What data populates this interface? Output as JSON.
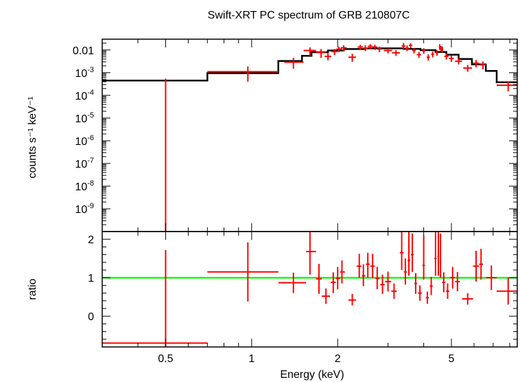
{
  "chart_data": [
    {
      "type": "scatter",
      "panel": "spectrum",
      "title": "Swift-XRT PC spectrum of GRB 210807C",
      "xlabel": "Energy (keV)",
      "ylabel": "counts s⁻¹ keV⁻¹",
      "xscale": "log",
      "yscale": "log",
      "xlim": [
        0.3,
        8.5
      ],
      "ylim": [
        1e-10,
        0.03
      ],
      "ytick_labels": [
        {
          "value": 0.01,
          "label": "0.01"
        },
        {
          "value": 0.001,
          "label": "10",
          "exp": "-3"
        },
        {
          "value": 0.0001,
          "label": "10",
          "exp": "-4"
        },
        {
          "value": 1e-05,
          "label": "10",
          "exp": "-5"
        },
        {
          "value": 1e-06,
          "label": "10",
          "exp": "-6"
        },
        {
          "value": 1e-07,
          "label": "10",
          "exp": "-7"
        },
        {
          "value": 1e-08,
          "label": "10",
          "exp": "-8"
        },
        {
          "value": 1e-09,
          "label": "10",
          "exp": "-9"
        }
      ],
      "data_color": "#ff0000",
      "model_color": "#000000",
      "model_steps": [
        {
          "x0": 0.3,
          "x1": 0.7,
          "y": 0.00045
        },
        {
          "x0": 0.7,
          "x1": 1.24,
          "y": 0.00095
        },
        {
          "x0": 1.24,
          "x1": 1.5,
          "y": 0.0033
        },
        {
          "x0": 1.5,
          "x1": 1.62,
          "y": 0.0055
        },
        {
          "x0": 1.62,
          "x1": 1.85,
          "y": 0.008
        },
        {
          "x0": 1.85,
          "x1": 2.1,
          "y": 0.0095
        },
        {
          "x0": 2.1,
          "x1": 2.5,
          "y": 0.011
        },
        {
          "x0": 2.5,
          "x1": 3.4,
          "y": 0.0118
        },
        {
          "x0": 3.4,
          "x1": 3.9,
          "y": 0.0112
        },
        {
          "x0": 3.9,
          "x1": 4.4,
          "y": 0.0098
        },
        {
          "x0": 4.4,
          "x1": 4.8,
          "y": 0.0082
        },
        {
          "x0": 4.8,
          "x1": 5.3,
          "y": 0.0062
        },
        {
          "x0": 5.3,
          "x1": 5.9,
          "y": 0.004
        },
        {
          "x0": 5.9,
          "x1": 6.6,
          "y": 0.0023
        },
        {
          "x0": 6.6,
          "x1": 7.2,
          "y": 0.0012
        },
        {
          "x0": 7.2,
          "x1": 8.5,
          "y": 0.00038
        }
      ],
      "points": [
        {
          "x": 0.5,
          "xlo": 0.5,
          "xhi": 0.5,
          "y": 0.00045,
          "ylo": 1e-10,
          "yhi": 0.00055
        },
        {
          "x": 0.97,
          "xlo": 0.7,
          "xhi": 1.24,
          "y": 0.0011,
          "ylo": 0.0004,
          "yhi": 0.0019
        },
        {
          "x": 1.4,
          "xlo": 1.3,
          "xhi": 1.52,
          "y": 0.0029,
          "ylo": 0.0015,
          "yhi": 0.0045
        },
        {
          "x": 1.6,
          "xlo": 1.52,
          "xhi": 1.68,
          "y": 0.0095,
          "ylo": 0.0055,
          "yhi": 0.013
        },
        {
          "x": 1.75,
          "xlo": 1.68,
          "xhi": 1.82,
          "y": 0.0078,
          "ylo": 0.0045,
          "yhi": 0.011
        },
        {
          "x": 1.85,
          "xlo": 1.8,
          "xhi": 1.9,
          "y": 0.0052,
          "ylo": 0.0035,
          "yhi": 0.0072
        },
        {
          "x": 1.95,
          "xlo": 1.9,
          "xhi": 2.0,
          "y": 0.0085,
          "ylo": 0.006,
          "yhi": 0.011
        },
        {
          "x": 2.02,
          "xlo": 1.98,
          "xhi": 2.07,
          "y": 0.011,
          "ylo": 0.008,
          "yhi": 0.014
        },
        {
          "x": 2.1,
          "xlo": 2.05,
          "xhi": 2.15,
          "y": 0.0125,
          "ylo": 0.009,
          "yhi": 0.016
        },
        {
          "x": 2.25,
          "xlo": 2.18,
          "xhi": 2.32,
          "y": 0.0048,
          "ylo": 0.003,
          "yhi": 0.0068
        },
        {
          "x": 2.4,
          "xlo": 2.35,
          "xhi": 2.45,
          "y": 0.0135,
          "ylo": 0.01,
          "yhi": 0.017
        },
        {
          "x": 2.5,
          "xlo": 2.45,
          "xhi": 2.55,
          "y": 0.012,
          "ylo": 0.009,
          "yhi": 0.016
        },
        {
          "x": 2.6,
          "xlo": 2.55,
          "xhi": 2.65,
          "y": 0.0145,
          "ylo": 0.011,
          "yhi": 0.018
        },
        {
          "x": 2.7,
          "xlo": 2.65,
          "xhi": 2.75,
          "y": 0.0135,
          "ylo": 0.01,
          "yhi": 0.017
        },
        {
          "x": 2.8,
          "xlo": 2.75,
          "xhi": 2.85,
          "y": 0.011,
          "ylo": 0.008,
          "yhi": 0.014
        },
        {
          "x": 3.0,
          "xlo": 2.9,
          "xhi": 3.1,
          "y": 0.0095,
          "ylo": 0.007,
          "yhi": 0.012
        },
        {
          "x": 3.2,
          "xlo": 3.1,
          "xhi": 3.3,
          "y": 0.0075,
          "ylo": 0.0055,
          "yhi": 0.0098
        },
        {
          "x": 3.4,
          "xlo": 3.35,
          "xhi": 3.45,
          "y": 0.015,
          "ylo": 0.011,
          "yhi": 0.02
        },
        {
          "x": 3.5,
          "xlo": 3.45,
          "xhi": 3.55,
          "y": 0.012,
          "ylo": 0.009,
          "yhi": 0.016
        },
        {
          "x": 3.6,
          "xlo": 3.55,
          "xhi": 3.65,
          "y": 0.016,
          "ylo": 0.012,
          "yhi": 0.02
        },
        {
          "x": 3.7,
          "xlo": 3.65,
          "xhi": 3.75,
          "y": 0.0095,
          "ylo": 0.007,
          "yhi": 0.012
        },
        {
          "x": 3.85,
          "xlo": 3.78,
          "xhi": 3.92,
          "y": 0.0062,
          "ylo": 0.0045,
          "yhi": 0.0082
        },
        {
          "x": 4.0,
          "xlo": 3.95,
          "xhi": 4.05,
          "y": 0.0092,
          "ylo": 0.0068,
          "yhi": 0.012
        },
        {
          "x": 4.15,
          "xlo": 4.1,
          "xhi": 4.2,
          "y": 0.0048,
          "ylo": 0.0034,
          "yhi": 0.0064
        },
        {
          "x": 4.3,
          "xlo": 4.25,
          "xhi": 4.35,
          "y": 0.0065,
          "ylo": 0.0048,
          "yhi": 0.0085
        },
        {
          "x": 4.45,
          "xlo": 4.4,
          "xhi": 4.5,
          "y": 0.0075,
          "ylo": 0.0055,
          "yhi": 0.0098
        },
        {
          "x": 4.55,
          "xlo": 4.52,
          "xhi": 4.58,
          "y": 0.0135,
          "ylo": 0.01,
          "yhi": 0.018
        },
        {
          "x": 4.6,
          "xlo": 4.58,
          "xhi": 4.62,
          "y": 0.0115,
          "ylo": 0.0085,
          "yhi": 0.015
        },
        {
          "x": 4.65,
          "xlo": 4.62,
          "xhi": 4.68,
          "y": 0.0108,
          "ylo": 0.008,
          "yhi": 0.014
        },
        {
          "x": 4.8,
          "xlo": 4.72,
          "xhi": 4.88,
          "y": 0.0052,
          "ylo": 0.0038,
          "yhi": 0.007
        },
        {
          "x": 5.0,
          "xlo": 4.9,
          "xhi": 5.1,
          "y": 0.0042,
          "ylo": 0.003,
          "yhi": 0.0056
        },
        {
          "x": 5.3,
          "xlo": 5.15,
          "xhi": 5.45,
          "y": 0.0032,
          "ylo": 0.0023,
          "yhi": 0.0043
        },
        {
          "x": 5.7,
          "xlo": 5.5,
          "xhi": 5.9,
          "y": 0.0016,
          "ylo": 0.0011,
          "yhi": 0.0022
        },
        {
          "x": 6.1,
          "xlo": 5.95,
          "xhi": 6.25,
          "y": 0.0026,
          "ylo": 0.0017,
          "yhi": 0.0036
        },
        {
          "x": 6.45,
          "xlo": 6.3,
          "xhi": 6.6,
          "y": 0.0022,
          "ylo": 0.0014,
          "yhi": 0.0031
        },
        {
          "x": 7.9,
          "xlo": 7.2,
          "xhi": 8.5,
          "y": 0.00028,
          "ylo": 0.00015,
          "yhi": 0.00042
        }
      ]
    },
    {
      "type": "scatter",
      "panel": "ratio",
      "xlabel": "Energy (keV)",
      "ylabel": "ratio",
      "xscale": "log",
      "xlim": [
        0.3,
        8.5
      ],
      "ylim": [
        -0.8,
        2.2
      ],
      "yticks": [
        0,
        1,
        2
      ],
      "xticks": [
        0.5,
        1,
        2,
        5
      ],
      "xtick_labels": [
        "0.5",
        "1",
        "2",
        "5"
      ],
      "reference_line": {
        "y": 1,
        "color": "#00ff00"
      },
      "data_color": "#ff0000",
      "points": [
        {
          "x": 0.5,
          "xlo": 0.3,
          "xhi": 0.7,
          "y": -0.7,
          "ylo": -0.8,
          "yhi": 1.72
        },
        {
          "x": 0.97,
          "xlo": 0.7,
          "xhi": 1.24,
          "y": 1.15,
          "ylo": 0.38,
          "yhi": 1.92
        },
        {
          "x": 1.4,
          "xlo": 1.24,
          "xhi": 1.55,
          "y": 0.87,
          "ylo": 0.6,
          "yhi": 1.13
        },
        {
          "x": 1.6,
          "xlo": 1.55,
          "xhi": 1.68,
          "y": 1.68,
          "ylo": 1.08,
          "yhi": 2.22
        },
        {
          "x": 1.72,
          "xlo": 1.68,
          "xhi": 1.76,
          "y": 0.97,
          "ylo": 0.58,
          "yhi": 1.36
        },
        {
          "x": 1.82,
          "xlo": 1.76,
          "xhi": 1.88,
          "y": 0.52,
          "ylo": 0.32,
          "yhi": 0.72
        },
        {
          "x": 1.93,
          "xlo": 1.89,
          "xhi": 1.97,
          "y": 0.88,
          "ylo": 0.6,
          "yhi": 1.14
        },
        {
          "x": 2.0,
          "xlo": 1.97,
          "xhi": 2.04,
          "y": 0.98,
          "ylo": 0.7,
          "yhi": 1.28
        },
        {
          "x": 2.07,
          "xlo": 2.04,
          "xhi": 2.12,
          "y": 1.15,
          "ylo": 0.85,
          "yhi": 1.45
        },
        {
          "x": 2.25,
          "xlo": 2.18,
          "xhi": 2.32,
          "y": 0.42,
          "ylo": 0.28,
          "yhi": 0.58
        },
        {
          "x": 2.38,
          "xlo": 2.33,
          "xhi": 2.42,
          "y": 1.3,
          "ylo": 1.0,
          "yhi": 1.62
        },
        {
          "x": 2.46,
          "xlo": 2.43,
          "xhi": 2.5,
          "y": 1.05,
          "ylo": 0.78,
          "yhi": 1.35
        },
        {
          "x": 2.55,
          "xlo": 2.51,
          "xhi": 2.59,
          "y": 1.35,
          "ylo": 1.0,
          "yhi": 1.65
        },
        {
          "x": 2.65,
          "xlo": 2.6,
          "xhi": 2.7,
          "y": 1.3,
          "ylo": 0.98,
          "yhi": 1.62
        },
        {
          "x": 2.75,
          "xlo": 2.71,
          "xhi": 2.8,
          "y": 0.98,
          "ylo": 0.7,
          "yhi": 1.28
        },
        {
          "x": 2.87,
          "xlo": 2.82,
          "xhi": 2.92,
          "y": 0.82,
          "ylo": 0.58,
          "yhi": 1.08
        },
        {
          "x": 3.0,
          "xlo": 2.93,
          "xhi": 3.08,
          "y": 0.9,
          "ylo": 0.64,
          "yhi": 1.16
        },
        {
          "x": 3.15,
          "xlo": 3.08,
          "xhi": 3.22,
          "y": 0.65,
          "ylo": 0.45,
          "yhi": 0.85
        },
        {
          "x": 3.35,
          "xlo": 3.3,
          "xhi": 3.4,
          "y": 1.65,
          "ylo": 1.2,
          "yhi": 2.22
        },
        {
          "x": 3.45,
          "xlo": 3.41,
          "xhi": 3.49,
          "y": 1.15,
          "ylo": 0.82,
          "yhi": 1.5
        },
        {
          "x": 3.55,
          "xlo": 3.51,
          "xhi": 3.59,
          "y": 1.45,
          "ylo": 1.05,
          "yhi": 2.2
        },
        {
          "x": 3.65,
          "xlo": 3.61,
          "xhi": 3.69,
          "y": 1.6,
          "ylo": 1.15,
          "yhi": 2.15
        },
        {
          "x": 3.75,
          "xlo": 3.71,
          "xhi": 3.79,
          "y": 0.85,
          "ylo": 0.58,
          "yhi": 1.12
        },
        {
          "x": 3.88,
          "xlo": 3.82,
          "xhi": 3.94,
          "y": 0.6,
          "ylo": 0.4,
          "yhi": 0.8
        },
        {
          "x": 4.0,
          "xlo": 3.96,
          "xhi": 4.04,
          "y": 1.32,
          "ylo": 0.95,
          "yhi": 2.1
        },
        {
          "x": 4.12,
          "xlo": 4.07,
          "xhi": 4.17,
          "y": 0.48,
          "ylo": 0.32,
          "yhi": 0.64
        },
        {
          "x": 4.25,
          "xlo": 4.2,
          "xhi": 4.3,
          "y": 0.78,
          "ylo": 0.55,
          "yhi": 1.02
        },
        {
          "x": 4.4,
          "xlo": 4.36,
          "xhi": 4.44,
          "y": 1.5,
          "ylo": 1.05,
          "yhi": 2.2
        },
        {
          "x": 4.5,
          "xlo": 4.47,
          "xhi": 4.53,
          "y": 1.55,
          "ylo": 1.05,
          "yhi": 2.2
        },
        {
          "x": 4.58,
          "xlo": 4.55,
          "xhi": 4.61,
          "y": 1.4,
          "ylo": 1.0,
          "yhi": 2.15
        },
        {
          "x": 4.7,
          "xlo": 4.64,
          "xhi": 4.76,
          "y": 0.88,
          "ylo": 0.62,
          "yhi": 1.14
        },
        {
          "x": 4.85,
          "xlo": 4.79,
          "xhi": 4.91,
          "y": 0.65,
          "ylo": 0.45,
          "yhi": 0.85
        },
        {
          "x": 5.05,
          "xlo": 4.95,
          "xhi": 5.15,
          "y": 1.0,
          "ylo": 0.72,
          "yhi": 1.28
        },
        {
          "x": 5.25,
          "xlo": 5.15,
          "xhi": 5.35,
          "y": 0.9,
          "ylo": 0.65,
          "yhi": 1.15
        },
        {
          "x": 5.7,
          "xlo": 5.45,
          "xhi": 5.95,
          "y": 0.45,
          "ylo": 0.3,
          "yhi": 0.6
        },
        {
          "x": 6.1,
          "xlo": 5.95,
          "xhi": 6.25,
          "y": 1.3,
          "ylo": 0.9,
          "yhi": 1.7
        },
        {
          "x": 6.35,
          "xlo": 6.25,
          "xhi": 6.45,
          "y": 1.35,
          "ylo": 0.95,
          "yhi": 1.75
        },
        {
          "x": 6.9,
          "xlo": 6.6,
          "xhi": 7.2,
          "y": 1.0,
          "ylo": 0.68,
          "yhi": 1.32
        },
        {
          "x": 7.9,
          "xlo": 7.2,
          "xhi": 8.5,
          "y": 0.65,
          "ylo": 0.3,
          "yhi": 1.0
        }
      ]
    }
  ]
}
